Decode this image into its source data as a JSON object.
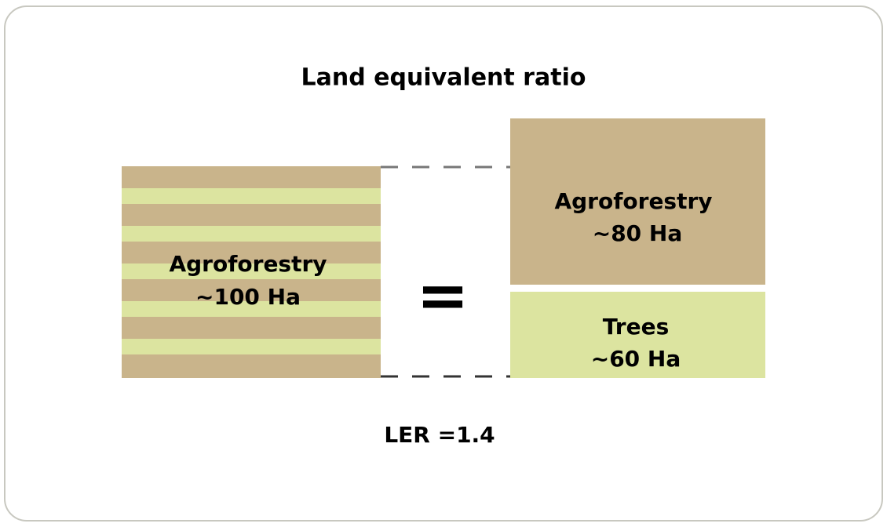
{
  "title": "Land equivalent ratio",
  "left_block": {
    "label": "Agroforestry",
    "area": "~100 Ha"
  },
  "equals": "=",
  "right_blocks": [
    {
      "label": "Agroforestry",
      "area": "~80 Ha"
    },
    {
      "label": "Trees",
      "area": "~60 Ha"
    }
  ],
  "result": "LER =1.4"
}
